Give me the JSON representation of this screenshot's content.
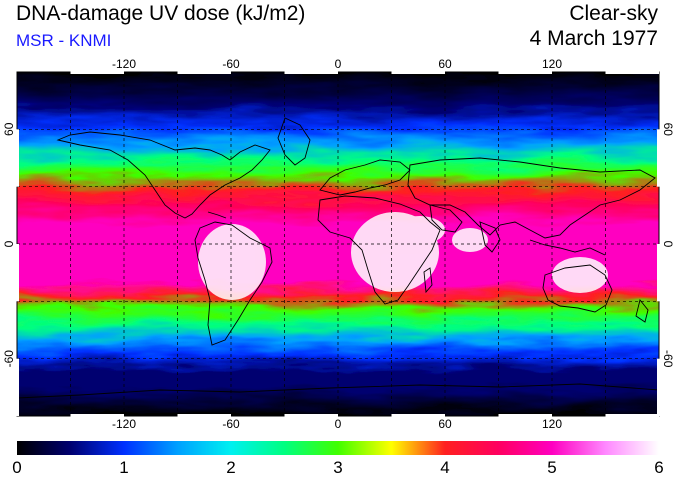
{
  "header": {
    "title": "DNA-damage UV dose (kJ/m2)",
    "credit": "MSR - KNMI",
    "sky_condition": "Clear-sky",
    "date": "4 March 1977"
  },
  "map": {
    "projection": "equirectangular",
    "lon_range": [
      -180,
      180
    ],
    "lat_range": [
      -90,
      90
    ],
    "lon_ticks": [
      "-120",
      "-60",
      "0",
      "60",
      "120"
    ],
    "lat_ticks": [
      "60",
      "0",
      "-60"
    ],
    "graticule": "dashed, 30 degree spacing",
    "field": "DNA-damage UV dose",
    "colors": {
      "land_outline": "#000000",
      "graticule": "#000000"
    }
  },
  "colorbar": {
    "min": 0,
    "max": 6,
    "labels": [
      "0",
      "1",
      "2",
      "3",
      "4",
      "5",
      "6"
    ],
    "stops": [
      {
        "value": 0.0,
        "color": "#000000"
      },
      {
        "value": 0.5,
        "color": "#000070"
      },
      {
        "value": 1.0,
        "color": "#0030ff"
      },
      {
        "value": 1.5,
        "color": "#00a0ff"
      },
      {
        "value": 2.0,
        "color": "#00f0f0"
      },
      {
        "value": 2.5,
        "color": "#00ff80"
      },
      {
        "value": 3.0,
        "color": "#40ff00"
      },
      {
        "value": 3.5,
        "color": "#ffff00"
      },
      {
        "value": 4.0,
        "color": "#ff2020"
      },
      {
        "value": 4.5,
        "color": "#ff0060"
      },
      {
        "value": 5.0,
        "color": "#ff00c0"
      },
      {
        "value": 5.5,
        "color": "#ff88ff"
      },
      {
        "value": 6.0,
        "color": "#ffffff"
      }
    ]
  }
}
